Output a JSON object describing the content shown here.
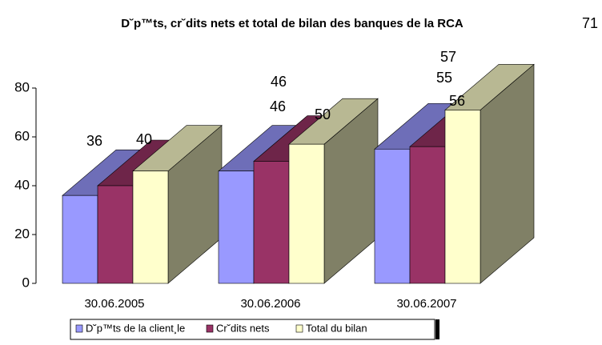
{
  "chart_data": {
    "type": "bar3d",
    "title": "D˘p™ts, cr˘dits nets et total de bilan des banques de la RCA",
    "categories": [
      "30.06.2005",
      "30.06.2006",
      "30.06.2007"
    ],
    "series": [
      {
        "name": "D˘p™ts de la client¸le",
        "color": "#9999ff",
        "values": [
          36,
          46,
          55
        ]
      },
      {
        "name": "Cr˘dits nets",
        "color": "#993366",
        "values": [
          40,
          50,
          56
        ]
      },
      {
        "name": "Total du bilan",
        "color": "#ffffcc",
        "values": [
          46,
          57,
          71
        ]
      }
    ],
    "ylim": [
      0,
      80
    ],
    "yticks": [
      0,
      20,
      40,
      60,
      80
    ],
    "legend": "bottom"
  }
}
